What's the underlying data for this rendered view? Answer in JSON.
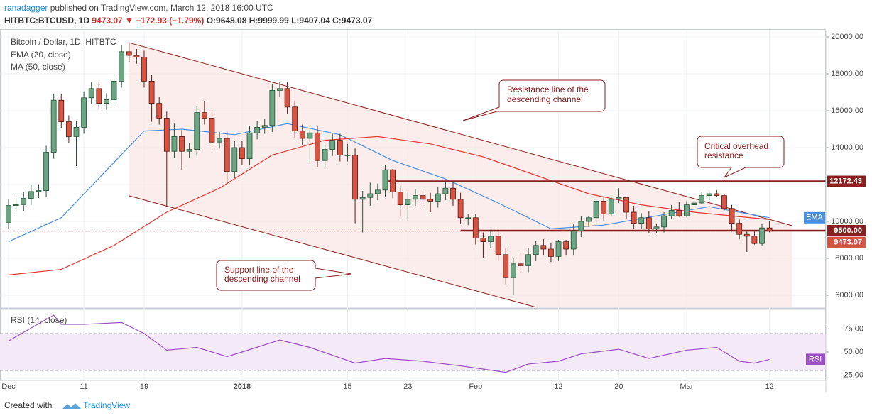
{
  "header": {
    "author": "ranadagger",
    "published": "published on TradingView.com, March 12, 2018 16:00 UTC",
    "symbol": "HITBTC:BTCUSD, 1D",
    "change": "9473.07 ▼ −172.93 (−1.79%)",
    "ohlc": "O:9648.08 H:9999.99 L:9407.04 C:9473.07"
  },
  "footer": {
    "created": "Created with",
    "brand": "TradingView"
  },
  "chart_data": {
    "type": "candlestick",
    "title": "Bitcoin / Dollar, 1D, HITBTC",
    "color_up": "#6ba583",
    "color_down": "#d75442",
    "grid": true,
    "x": [
      "2017-12-01",
      "2017-12-02",
      "2017-12-03",
      "2017-12-04",
      "2017-12-05",
      "2017-12-06",
      "2017-12-07",
      "2017-12-08",
      "2017-12-09",
      "2017-12-10",
      "2017-12-11",
      "2017-12-12",
      "2017-12-13",
      "2017-12-14",
      "2017-12-15",
      "2017-12-16",
      "2017-12-17",
      "2017-12-18",
      "2017-12-19",
      "2017-12-20",
      "2017-12-21",
      "2017-12-22",
      "2017-12-23",
      "2017-12-24",
      "2017-12-25",
      "2017-12-26",
      "2017-12-27",
      "2017-12-28",
      "2017-12-29",
      "2017-12-30",
      "2017-12-31",
      "2018-01-01",
      "2018-01-02",
      "2018-01-03",
      "2018-01-04",
      "2018-01-05",
      "2018-01-06",
      "2018-01-07",
      "2018-01-08",
      "2018-01-09",
      "2018-01-10",
      "2018-01-11",
      "2018-01-12",
      "2018-01-13",
      "2018-01-14",
      "2018-01-15",
      "2018-01-16",
      "2018-01-17",
      "2018-01-18",
      "2018-01-19",
      "2018-01-20",
      "2018-01-21",
      "2018-01-22",
      "2018-01-23",
      "2018-01-24",
      "2018-01-25",
      "2018-01-26",
      "2018-01-27",
      "2018-01-28",
      "2018-01-29",
      "2018-01-30",
      "2018-01-31",
      "2018-02-01",
      "2018-02-02",
      "2018-02-03",
      "2018-02-04",
      "2018-02-05",
      "2018-02-06",
      "2018-02-07",
      "2018-02-08",
      "2018-02-09",
      "2018-02-10",
      "2018-02-11",
      "2018-02-12",
      "2018-02-13",
      "2018-02-14",
      "2018-02-15",
      "2018-02-16",
      "2018-02-17",
      "2018-02-18",
      "2018-02-19",
      "2018-02-20",
      "2018-02-21",
      "2018-02-22",
      "2018-02-23",
      "2018-02-24",
      "2018-02-25",
      "2018-02-26",
      "2018-02-27",
      "2018-02-28",
      "2018-03-01",
      "2018-03-02",
      "2018-03-03",
      "2018-03-04",
      "2018-03-05",
      "2018-03-06",
      "2018-03-07",
      "2018-03-08",
      "2018-03-09",
      "2018-03-10",
      "2018-03-11",
      "2018-03-12"
    ],
    "open": [
      9950,
      10860,
      10910,
      11250,
      11620,
      11670,
      13750,
      16570,
      15400,
      14600,
      15100,
      16700,
      17200,
      16400,
      16600,
      17600,
      19200,
      19000,
      18900,
      17600,
      16400,
      15600,
      13800,
      14600,
      13800,
      13900,
      15900,
      15600,
      14300,
      14500,
      12700,
      14000,
      13400,
      14800,
      15100,
      15200,
      17100,
      17200,
      16200,
      14900,
      14500,
      14800,
      13300,
      13900,
      14400,
      13600,
      13600,
      11200,
      11300,
      11500,
      11700,
      12800,
      11600,
      10900,
      11200,
      11400,
      11200,
      11100,
      11500,
      11800,
      11200,
      10200,
      10200,
      9100,
      8900,
      9200,
      8200,
      6950,
      7700,
      7600,
      8200,
      8700,
      8500,
      8100,
      8900,
      8500,
      9500,
      10000,
      10200,
      11100,
      10400,
      11200,
      11300,
      10500,
      9900,
      10200,
      9600,
      9700,
      10300,
      10600,
      10300,
      10900,
      11000,
      11400,
      11500,
      11400,
      10700,
      9900,
      9300,
      9200,
      8800,
      9648.08
    ],
    "high": [
      11210,
      11260,
      11600,
      11970,
      12020,
      14100,
      16920,
      16920,
      15750,
      15450,
      17050,
      17550,
      17550,
      16950,
      17950,
      19550,
      19700,
      19350,
      19250,
      17950,
      16750,
      15950,
      15300,
      14950,
      14250,
      16250,
      16500,
      15950,
      14850,
      14850,
      14350,
      14350,
      15150,
      15450,
      15550,
      17450,
      17550,
      17550,
      16550,
      15250,
      15150,
      15150,
      14250,
      14750,
      14750,
      14200,
      13950,
      11650,
      12100,
      12050,
      13050,
      12850,
      11950,
      11550,
      11750,
      11750,
      11550,
      11850,
      12150,
      12150,
      11550,
      10400,
      10400,
      9400,
      9550,
      9550,
      8550,
      8000,
      8400,
      8550,
      8950,
      9050,
      8850,
      9000,
      9000,
      9850,
      10300,
      10300,
      11150,
      11300,
      11350,
      11800,
      11350,
      10850,
      10450,
      10550,
      9850,
      10500,
      10900,
      11050,
      11100,
      11200,
      11600,
      11600,
      11700,
      11450,
      10900,
      10100,
      9450,
      9500,
      9850,
      9999.99
    ],
    "low": [
      9600,
      10510,
      10560,
      10900,
      11270,
      11320,
      13400,
      15050,
      14250,
      13000,
      14750,
      16350,
      16050,
      16050,
      16250,
      17250,
      18650,
      18550,
      17250,
      15400,
      15250,
      10800,
      13450,
      12800,
      13450,
      13550,
      15250,
      13950,
      13950,
      12050,
      12350,
      13050,
      13050,
      14450,
      14750,
      14850,
      16750,
      15850,
      14550,
      14150,
      13200,
      12950,
      12950,
      13550,
      13250,
      13250,
      9900,
      9400,
      10850,
      11150,
      11350,
      11250,
      10250,
      10050,
      10850,
      10850,
      10500,
      10750,
      11150,
      10850,
      9850,
      9800,
      8750,
      8000,
      8550,
      7850,
      6600,
      6000,
      7250,
      7250,
      7850,
      8150,
      7800,
      7850,
      8150,
      8150,
      9150,
      9700,
      9850,
      10050,
      10300,
      11000,
      10150,
      9600,
      9600,
      9350,
      9350,
      9400,
      10150,
      10250,
      10250,
      10800,
      10950,
      11100,
      11350,
      10600,
      9450,
      9050,
      8350,
      8750,
      8700,
      9407.04
    ],
    "close": [
      10860,
      10910,
      11250,
      11620,
      11670,
      13750,
      16570,
      15400,
      14600,
      15100,
      16700,
      17200,
      16400,
      16600,
      17600,
      19200,
      19000,
      18900,
      17600,
      16400,
      15600,
      13800,
      14600,
      13800,
      13900,
      15900,
      15600,
      14300,
      14500,
      12700,
      14000,
      13400,
      14800,
      15100,
      15200,
      17100,
      17200,
      16200,
      14900,
      14500,
      14800,
      13300,
      13900,
      14400,
      13600,
      13600,
      11200,
      11300,
      11500,
      11700,
      12800,
      11600,
      10900,
      11200,
      11400,
      11200,
      11100,
      11500,
      11800,
      11200,
      10200,
      10200,
      9100,
      8900,
      9200,
      8200,
      6950,
      7700,
      7600,
      8200,
      8700,
      8500,
      8100,
      8900,
      8500,
      9500,
      10000,
      10200,
      11100,
      10400,
      11200,
      11300,
      10500,
      9900,
      10200,
      9600,
      9700,
      10300,
      10600,
      10300,
      10900,
      11000,
      11400,
      11500,
      11400,
      10700,
      9900,
      9300,
      9200,
      8800,
      9648.08,
      9473.07
    ],
    "ylim": [
      5346,
      20385
    ],
    "yticks": [
      {
        "value": 6000,
        "label": "6000.00"
      },
      {
        "value": 8000,
        "label": "8000.00"
      },
      {
        "value": 10000,
        "label": "10000.00"
      },
      {
        "value": 12000,
        "label": "12000.00"
      },
      {
        "value": 14000,
        "label": "14000.00"
      },
      {
        "value": 16000,
        "label": "16000.00"
      },
      {
        "value": 18000,
        "label": "18000.00"
      },
      {
        "value": 20000,
        "label": "20000.00"
      }
    ],
    "xticks": [
      {
        "value": "2017-12-01",
        "label": "Dec"
      },
      {
        "value": "2017-12-11",
        "label": "11"
      },
      {
        "value": "2017-12-19",
        "label": "19"
      },
      {
        "value": "2018-01-01",
        "label": "2018"
      },
      {
        "value": "2018-01-15",
        "label": "15"
      },
      {
        "value": "2018-01-23",
        "label": "23"
      },
      {
        "value": "2018-02-01",
        "label": "Feb"
      },
      {
        "value": "2018-02-12",
        "label": "12"
      },
      {
        "value": "2018-02-20",
        "label": "20"
      },
      {
        "value": "2018-03-01",
        "label": "Mar"
      },
      {
        "value": "2018-03-12",
        "label": "12"
      }
    ],
    "series": [
      {
        "name": "EMA (20, close)",
        "color": "#4a90e2",
        "tag": "EMA",
        "x": [
          "2017-12-01",
          "2017-12-08",
          "2017-12-15",
          "2017-12-19",
          "2017-12-24",
          "2017-12-31",
          "2018-01-07",
          "2018-01-14",
          "2018-01-21",
          "2018-01-28",
          "2018-02-04",
          "2018-02-11",
          "2018-02-18",
          "2018-02-25",
          "2018-03-04",
          "2018-03-12"
        ],
        "values": [
          8900,
          10200,
          13200,
          14900,
          15000,
          14700,
          15300,
          14700,
          13300,
          12300,
          11000,
          9600,
          9800,
          10300,
          10800,
          10200
        ]
      },
      {
        "name": "MA (50, close)",
        "color": "#e53935",
        "x": [
          "2017-12-01",
          "2017-12-08",
          "2017-12-15",
          "2017-12-22",
          "2017-12-29",
          "2018-01-05",
          "2018-01-12",
          "2018-01-19",
          "2018-01-26",
          "2018-02-02",
          "2018-02-09",
          "2018-02-16",
          "2018-02-23",
          "2018-03-02",
          "2018-03-12"
        ],
        "values": [
          7100,
          7400,
          8700,
          10500,
          11800,
          13600,
          14400,
          14600,
          14200,
          13500,
          12500,
          11500,
          10900,
          10500,
          10100
        ]
      }
    ],
    "levels": [
      {
        "value": 12172.43,
        "label": "12172.43",
        "from": "2018-01-20"
      },
      {
        "value": 9500,
        "label": "9500.00",
        "from": "2018-01-30"
      }
    ],
    "channel": {
      "upper": [
        {
          "x": "2017-12-17",
          "y": 19690
        },
        {
          "x": "2018-03-15",
          "y": 9770
        }
      ],
      "lower": [
        {
          "x": "2017-12-17",
          "y": 11390
        },
        {
          "x": "2018-02-09",
          "y": 5350
        }
      ]
    },
    "annotations": [
      {
        "lines": [
          "Resistance line of the",
          "descending channel"
        ]
      },
      {
        "lines": [
          "Critical overhead",
          "resistance"
        ]
      },
      {
        "lines": [
          "Support line of the",
          "descending channel"
        ]
      }
    ],
    "rsi": {
      "name": "RSI (14, close)",
      "tag": "RSI",
      "color": "#9c4fc4",
      "x": [
        "2017-12-01",
        "2017-12-07",
        "2017-12-08",
        "2017-12-11",
        "2017-12-16",
        "2017-12-19",
        "2017-12-22",
        "2017-12-26",
        "2017-12-30",
        "2018-01-01",
        "2018-01-06",
        "2018-01-10",
        "2018-01-16",
        "2018-01-20",
        "2018-01-25",
        "2018-01-30",
        "2018-02-05",
        "2018-02-08",
        "2018-02-12",
        "2018-02-15",
        "2018-02-20",
        "2018-02-24",
        "2018-03-01",
        "2018-03-05",
        "2018-03-08",
        "2018-03-10",
        "2018-03-12"
      ],
      "values": [
        62,
        90,
        80,
        80,
        82,
        70,
        52,
        55,
        45,
        50,
        63,
        55,
        38,
        43,
        40,
        35,
        28,
        37,
        40,
        48,
        53,
        43,
        52,
        55,
        40,
        38,
        42
      ],
      "ylim": [
        20,
        95.4
      ],
      "bands": [
        70,
        30
      ],
      "yticks": [
        {
          "value": 25,
          "label": "25.00"
        },
        {
          "value": 50,
          "label": "50.00"
        },
        {
          "value": 75,
          "label": "75.00"
        }
      ]
    }
  }
}
